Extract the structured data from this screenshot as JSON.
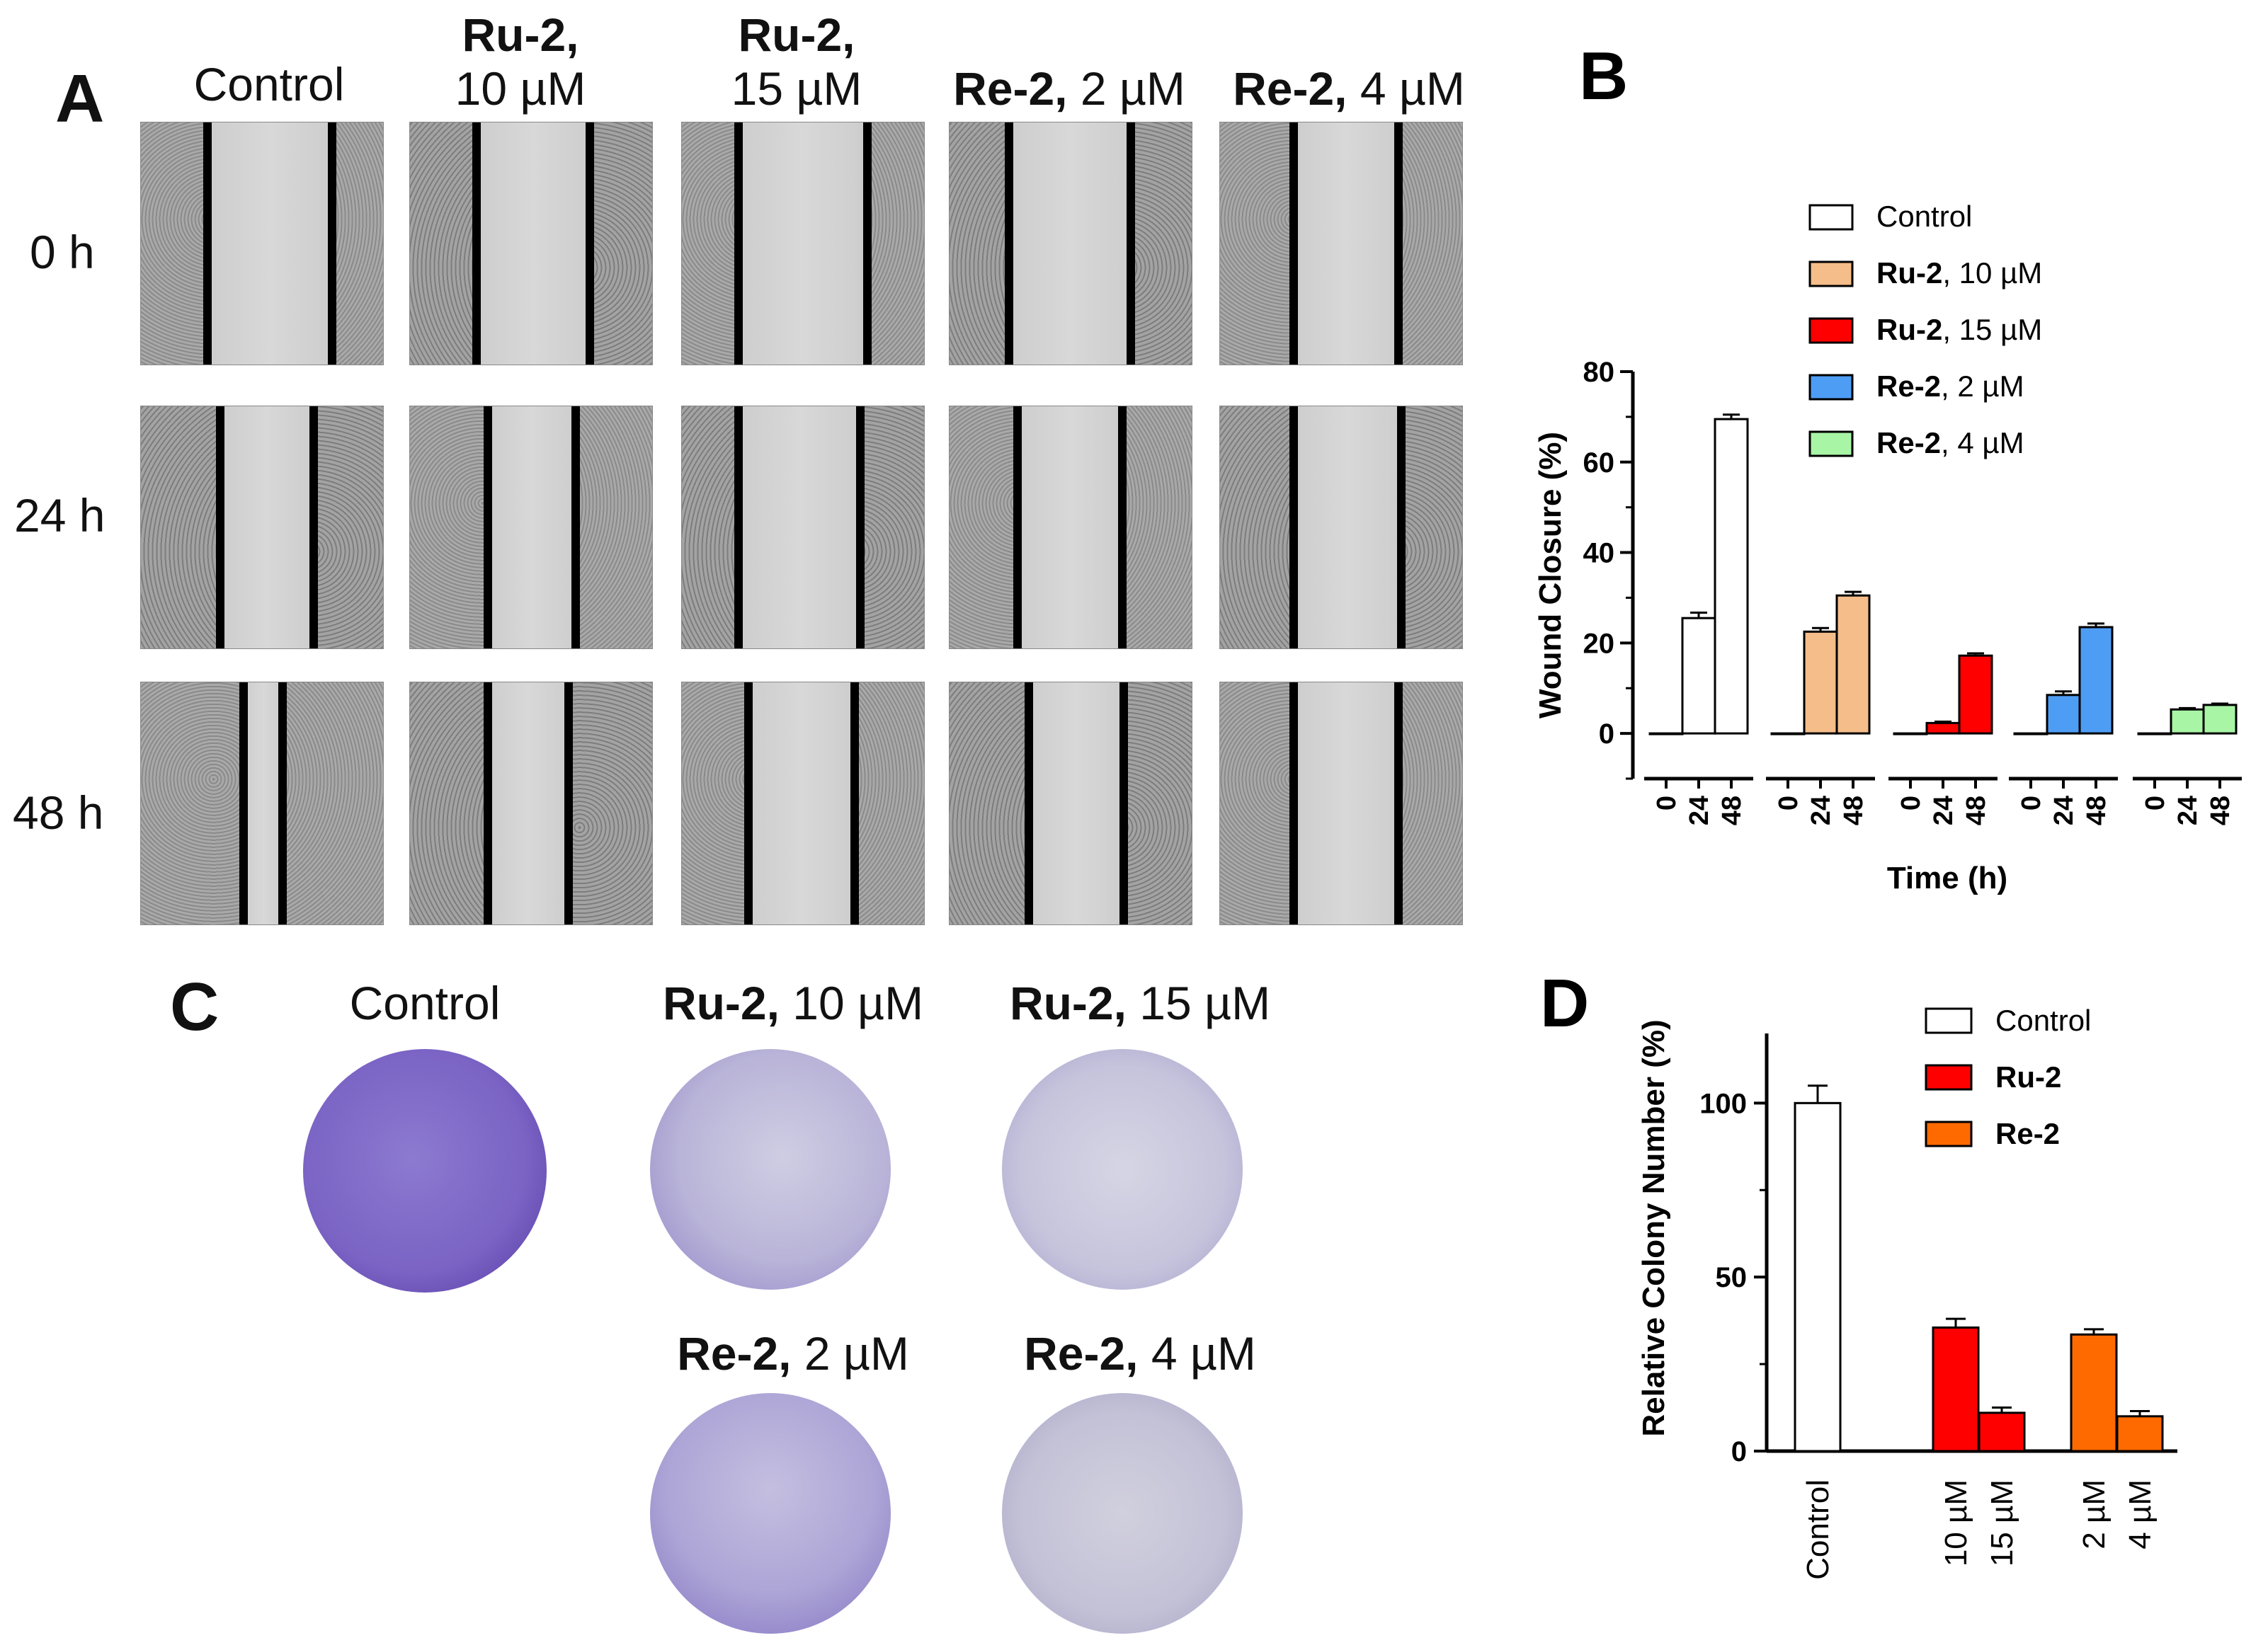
{
  "panelA": {
    "letter": "A",
    "columns": [
      {
        "name_bold": "",
        "name_rest": "Control",
        "line2": ""
      },
      {
        "name_bold": "Ru-2,",
        "name_rest": "",
        "line2": "10 µM"
      },
      {
        "name_bold": "Ru-2,",
        "name_rest": "",
        "line2": "15 µM"
      },
      {
        "name_bold": "Re-2,",
        "name_rest": " 2 µM",
        "line2": ""
      },
      {
        "name_bold": "Re-2,",
        "name_rest": " 4 µM",
        "line2": ""
      }
    ],
    "rows": [
      "0 h",
      "24 h",
      "48 h"
    ]
  },
  "panelC": {
    "letter": "C",
    "labels": [
      {
        "bold": "",
        "rest": "Control"
      },
      {
        "bold": "Ru-2,",
        "rest": " 10 µM"
      },
      {
        "bold": "Ru-2,",
        "rest": " 15 µM"
      },
      {
        "bold": "Re-2,",
        "rest": " 2 µM"
      },
      {
        "bold": "Re-2,",
        "rest": " 4 µM"
      }
    ]
  },
  "chart_data": [
    {
      "panel": "B",
      "type": "bar",
      "xlabel": "Time (h)",
      "ylabel": "Wound Closure (%)",
      "ylim": [
        -10,
        80
      ],
      "yticks": [
        0,
        20,
        40,
        60,
        80
      ],
      "categories": [
        "0",
        "24",
        "48"
      ],
      "series": [
        {
          "name_bold": "",
          "name_rest": "Control",
          "color": "#ffffff",
          "values": [
            0,
            25.5,
            69.5
          ],
          "errors": [
            0,
            1.2,
            1.0
          ]
        },
        {
          "name_bold": "Ru-2",
          "name_rest": ", 10 µM",
          "color": "#f5bd8a",
          "values": [
            0,
            22.5,
            30.5
          ],
          "errors": [
            0,
            0.8,
            0.8
          ]
        },
        {
          "name_bold": "Ru-2",
          "name_rest": ", 15 µM",
          "color": "#ff0000",
          "values": [
            0,
            2.3,
            17.2
          ],
          "errors": [
            0,
            0.3,
            0.5
          ]
        },
        {
          "name_bold": "Re-2",
          "name_rest": ", 2 µM",
          "color": "#4e9df5",
          "values": [
            0,
            8.5,
            23.5
          ],
          "errors": [
            0,
            0.8,
            0.8
          ]
        },
        {
          "name_bold": "Re-2",
          "name_rest": ", 4 µM",
          "color": "#a9f5a6",
          "values": [
            0,
            5.3,
            6.3
          ],
          "errors": [
            0,
            0.3,
            0.3
          ]
        }
      ],
      "legend": "top-right"
    },
    {
      "panel": "D",
      "type": "bar",
      "ylabel": "Relative Colony Number (%)",
      "ylim": [
        0,
        120
      ],
      "yticks": [
        0,
        50,
        100
      ],
      "categories": [
        "Control",
        "10 µM",
        "15 µM",
        "2 µM",
        "4 µM"
      ],
      "values": [
        100,
        35.5,
        11,
        33.5,
        10
      ],
      "errors": [
        5,
        2.5,
        1.5,
        1.5,
        1.5
      ],
      "groups": [
        "Control",
        "Ru-2",
        "Ru-2",
        "Re-2",
        "Re-2"
      ],
      "series_legend": [
        {
          "name": "Control",
          "color": "#ffffff",
          "bold": false
        },
        {
          "name": "Ru-2",
          "color": "#ff0000",
          "bold": true
        },
        {
          "name": "Re-2",
          "color": "#ff6a00",
          "bold": true
        }
      ],
      "legend": "top-right"
    }
  ]
}
